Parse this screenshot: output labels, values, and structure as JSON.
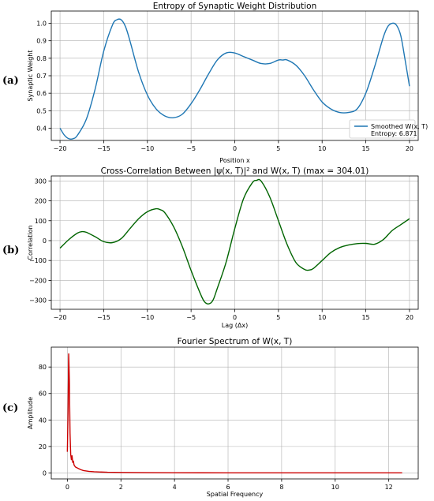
{
  "chart_data": [
    {
      "type": "line",
      "panel_label": "(a)",
      "title": "Entropy of Synaptic Weight Distribution",
      "xlabel": "Position x",
      "ylabel": "Synaptic Weight",
      "xlim": [
        -21,
        21
      ],
      "ylim": [
        0.33,
        1.07
      ],
      "xticks": [
        -20,
        -15,
        -10,
        -5,
        0,
        5,
        10,
        15,
        20
      ],
      "yticks": [
        0.4,
        0.5,
        0.6,
        0.7,
        0.8,
        0.9,
        1.0
      ],
      "ytick_labels": [
        "0.4",
        "0.5",
        "0.6",
        "0.7",
        "0.8",
        "0.9",
        "1.0"
      ],
      "grid": true,
      "legend_placement": "lower-right",
      "legend_label": "Smoothed W(x, T)",
      "legend_note": "Entropy: 6.871",
      "color": "#1f77b4",
      "series": [
        {
          "name": "Smoothed W(x, T)",
          "x": [
            -20,
            -19.5,
            -19,
            -18.5,
            -18,
            -17,
            -16,
            -15,
            -14,
            -13.5,
            -13,
            -12.5,
            -12,
            -11,
            -10,
            -9,
            -8,
            -7,
            -6,
            -5,
            -4,
            -3,
            -2,
            -1,
            0,
            1,
            2,
            3,
            4,
            5,
            5.5,
            6,
            7,
            8,
            9,
            10,
            11,
            12,
            13,
            14,
            15,
            16,
            17,
            17.5,
            18,
            18.5,
            19,
            19.5,
            20
          ],
          "y": [
            0.4,
            0.36,
            0.34,
            0.34,
            0.36,
            0.45,
            0.62,
            0.84,
            0.99,
            1.02,
            1.02,
            0.98,
            0.9,
            0.72,
            0.59,
            0.51,
            0.47,
            0.46,
            0.48,
            0.54,
            0.62,
            0.71,
            0.79,
            0.83,
            0.83,
            0.81,
            0.79,
            0.77,
            0.77,
            0.79,
            0.79,
            0.79,
            0.76,
            0.7,
            0.62,
            0.55,
            0.51,
            0.49,
            0.49,
            0.51,
            0.6,
            0.75,
            0.92,
            0.98,
            1.0,
            0.99,
            0.93,
            0.79,
            0.64
          ]
        }
      ]
    },
    {
      "type": "line",
      "panel_label": "(b)",
      "title": "Cross-Correlation Between |ψ(x, T)|² and W(x, T) (max = 304.01)",
      "xlabel": "Lag (Δx)",
      "ylabel": "Correlation",
      "xlim": [
        -21,
        21
      ],
      "ylim": [
        -345,
        325
      ],
      "xticks": [
        -20,
        -15,
        -10,
        -5,
        0,
        5,
        10,
        15,
        20
      ],
      "yticks": [
        -300,
        -200,
        -100,
        0,
        100,
        200,
        300
      ],
      "ytick_labels": [
        "−300",
        "−200",
        "−100",
        "0",
        "100",
        "200",
        "300"
      ],
      "grid": true,
      "color": "#006400",
      "series": [
        {
          "name": "",
          "x": [
            -20,
            -19,
            -18,
            -17.5,
            -17,
            -16,
            -15,
            -14,
            -13,
            -12,
            -11,
            -10,
            -9,
            -8.5,
            -8,
            -7,
            -6,
            -5,
            -4,
            -3.5,
            -3,
            -2.5,
            -2,
            -1,
            0,
            1,
            2,
            2.5,
            3,
            4,
            5,
            6,
            7,
            8,
            8.5,
            9,
            10,
            11,
            12,
            13,
            14,
            15,
            16,
            17,
            18,
            19,
            20
          ],
          "y": [
            -38,
            5,
            38,
            45,
            42,
            20,
            -5,
            -10,
            10,
            60,
            110,
            145,
            160,
            155,
            140,
            70,
            -30,
            -150,
            -260,
            -305,
            -318,
            -300,
            -240,
            -110,
            60,
            210,
            290,
            303,
            300,
            220,
            100,
            -20,
            -110,
            -145,
            -148,
            -140,
            -100,
            -60,
            -35,
            -22,
            -15,
            -14,
            -18,
            5,
            50,
            80,
            110
          ]
        }
      ]
    },
    {
      "type": "line",
      "panel_label": "(c)",
      "title": "Fourier Spectrum of W(x, T)",
      "xlabel": "Spatial Frequency",
      "ylabel": "Amplitude",
      "xlim": [
        -0.6,
        13.1
      ],
      "ylim": [
        -4.5,
        95
      ],
      "xticks": [
        0,
        2,
        4,
        6,
        8,
        10,
        12
      ],
      "yticks": [
        0,
        20,
        40,
        60,
        80
      ],
      "ytick_labels": [
        "0",
        "20",
        "40",
        "60",
        "80"
      ],
      "grid": true,
      "color": "#cc0000",
      "series": [
        {
          "name": "",
          "x": [
            0,
            0.025,
            0.05,
            0.075,
            0.1,
            0.125,
            0.15,
            0.175,
            0.2,
            0.225,
            0.25,
            0.3,
            0.35,
            0.4,
            0.5,
            0.6,
            0.8,
            1.0,
            1.5,
            2,
            3,
            4,
            6,
            8,
            10,
            12.5
          ],
          "y": [
            16,
            45,
            90,
            70,
            30,
            14,
            10,
            13,
            8,
            9,
            6,
            4.5,
            4,
            3.5,
            2.5,
            1.8,
            1.2,
            0.9,
            0.5,
            0.35,
            0.2,
            0.15,
            0.1,
            0.08,
            0.06,
            0.05
          ]
        }
      ]
    }
  ]
}
